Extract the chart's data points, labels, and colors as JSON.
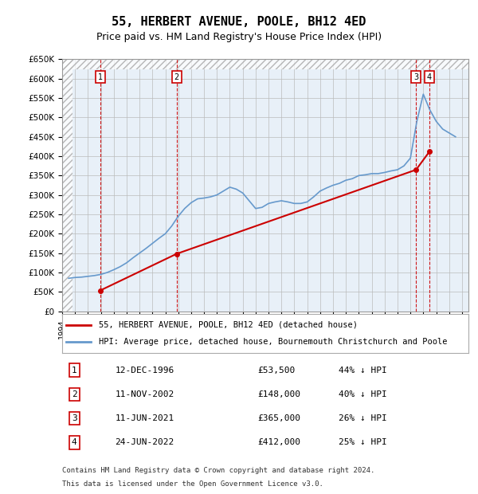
{
  "title": "55, HERBERT AVENUE, POOLE, BH12 4ED",
  "subtitle": "Price paid vs. HM Land Registry's House Price Index (HPI)",
  "title_fontsize": 11,
  "subtitle_fontsize": 9,
  "property_color": "#cc0000",
  "hpi_color": "#6699cc",
  "background_color": "#ffffff",
  "chart_bg": "#e8f0f8",
  "hatch_color": "#cccccc",
  "grid_color": "#bbbbbb",
  "ylim": [
    0,
    650000
  ],
  "yticks": [
    0,
    50000,
    100000,
    150000,
    200000,
    250000,
    300000,
    350000,
    400000,
    450000,
    500000,
    550000,
    600000,
    650000
  ],
  "xlim_start": 1994.0,
  "xlim_end": 2025.5,
  "sales": [
    {
      "num": 1,
      "date": "12-DEC-1996",
      "year": 1996.95,
      "price": 53500,
      "hpi_pct": "44% ↓ HPI"
    },
    {
      "num": 2,
      "date": "11-NOV-2002",
      "year": 2002.87,
      "price": 148000,
      "hpi_pct": "40% ↓ HPI"
    },
    {
      "num": 3,
      "date": "11-JUN-2021",
      "year": 2021.44,
      "price": 365000,
      "hpi_pct": "26% ↓ HPI"
    },
    {
      "num": 4,
      "date": "24-JUN-2022",
      "year": 2022.48,
      "price": 412000,
      "hpi_pct": "25% ↓ HPI"
    }
  ],
  "legend_line1": "55, HERBERT AVENUE, POOLE, BH12 4ED (detached house)",
  "legend_line2": "HPI: Average price, detached house, Bournemouth Christchurch and Poole",
  "footer1": "Contains HM Land Registry data © Crown copyright and database right 2024.",
  "footer2": "This data is licensed under the Open Government Licence v3.0.",
  "hpi_data": {
    "years": [
      1994.5,
      1995.0,
      1995.5,
      1996.0,
      1996.5,
      1997.0,
      1997.5,
      1998.0,
      1998.5,
      1999.0,
      1999.5,
      2000.0,
      2000.5,
      2001.0,
      2001.5,
      2002.0,
      2002.5,
      2003.0,
      2003.5,
      2004.0,
      2004.5,
      2005.0,
      2005.5,
      2006.0,
      2006.5,
      2007.0,
      2007.5,
      2008.0,
      2008.5,
      2009.0,
      2009.5,
      2010.0,
      2010.5,
      2011.0,
      2011.5,
      2012.0,
      2012.5,
      2013.0,
      2013.5,
      2014.0,
      2014.5,
      2015.0,
      2015.5,
      2016.0,
      2016.5,
      2017.0,
      2017.5,
      2018.0,
      2018.5,
      2019.0,
      2019.5,
      2020.0,
      2020.5,
      2021.0,
      2021.5,
      2022.0,
      2022.5,
      2023.0,
      2023.5,
      2024.0,
      2024.5
    ],
    "values": [
      85000,
      87000,
      88000,
      90000,
      92000,
      95000,
      100000,
      107000,
      115000,
      125000,
      138000,
      150000,
      162000,
      175000,
      188000,
      200000,
      220000,
      245000,
      265000,
      280000,
      290000,
      292000,
      295000,
      300000,
      310000,
      320000,
      315000,
      305000,
      285000,
      265000,
      268000,
      278000,
      282000,
      285000,
      282000,
      278000,
      278000,
      282000,
      295000,
      310000,
      318000,
      325000,
      330000,
      338000,
      342000,
      350000,
      352000,
      355000,
      355000,
      358000,
      362000,
      365000,
      375000,
      395000,
      490000,
      560000,
      520000,
      490000,
      470000,
      460000,
      450000
    ]
  }
}
